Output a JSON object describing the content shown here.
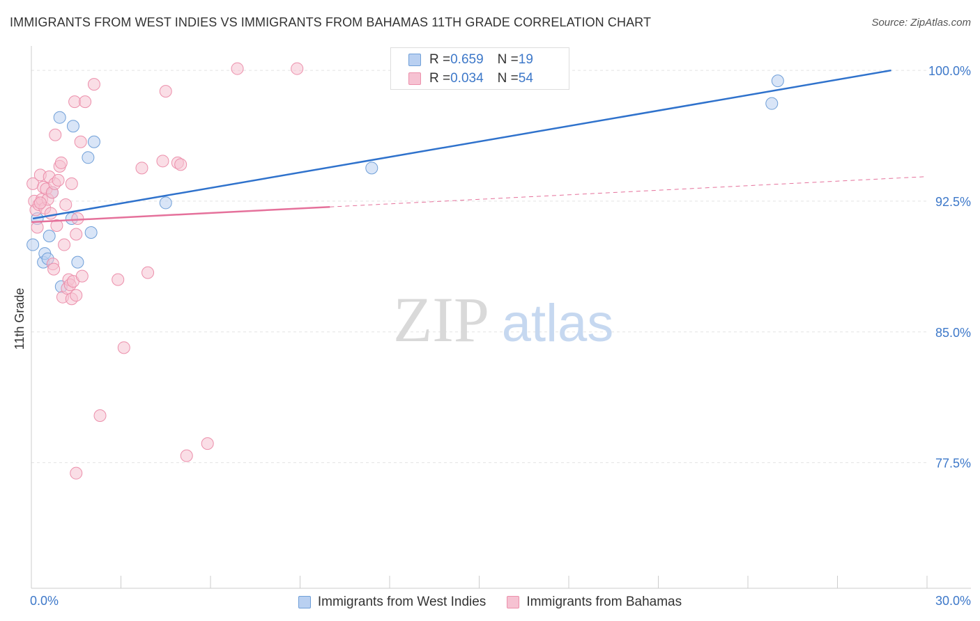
{
  "title": "IMMIGRANTS FROM WEST INDIES VS IMMIGRANTS FROM BAHAMAS 11TH GRADE CORRELATION CHART",
  "source": "Source: ZipAtlas.com",
  "watermark": {
    "zip": "ZIP",
    "atlas": "atlas"
  },
  "legend_top": [
    {
      "r_label": "R = ",
      "r_value": "0.659",
      "n_label": "N = ",
      "n_value": "19"
    },
    {
      "r_label": "R = ",
      "r_value": "0.034",
      "n_label": "N = ",
      "n_value": "54"
    }
  ],
  "chart_data": {
    "type": "scatter",
    "title": "IMMIGRANTS FROM WEST INDIES VS IMMIGRANTS FROM BAHAMAS 11TH GRADE CORRELATION CHART",
    "xlabel": "",
    "ylabel": "11th Grade",
    "xlim": [
      0,
      30
    ],
    "ylim": [
      70.3,
      101.4
    ],
    "x_tick_labels": [
      {
        "value": 0,
        "label": "0.0%"
      },
      {
        "value": 30,
        "label": "30.0%"
      }
    ],
    "y_tick_labels": [
      {
        "value": 100.0,
        "label": "100.0%"
      },
      {
        "value": 92.5,
        "label": "92.5%"
      },
      {
        "value": 85.0,
        "label": "85.0%"
      },
      {
        "value": 77.5,
        "label": "77.5%"
      }
    ],
    "series": [
      {
        "name": "Immigrants from West Indies",
        "color": "#6f9fd8",
        "fill": "#b9d0f1",
        "line_color": "#2f72cc",
        "trend": {
          "x0": 0.05,
          "y0": 91.5,
          "x1": 28.8,
          "y1": 100.0,
          "dashed_from": null
        },
        "points": [
          [
            0.05,
            90.0
          ],
          [
            0.2,
            91.5
          ],
          [
            0.4,
            89.0
          ],
          [
            0.45,
            89.5
          ],
          [
            0.55,
            89.2
          ],
          [
            0.6,
            90.5
          ],
          [
            0.7,
            93.0
          ],
          [
            0.95,
            97.3
          ],
          [
            1.0,
            87.6
          ],
          [
            1.35,
            91.5
          ],
          [
            1.4,
            96.8
          ],
          [
            1.55,
            89.0
          ],
          [
            2.1,
            95.9
          ],
          [
            1.9,
            95.0
          ],
          [
            2.0,
            90.7
          ],
          [
            4.5,
            92.4
          ],
          [
            11.4,
            94.4
          ],
          [
            24.8,
            98.1
          ],
          [
            25.0,
            99.4
          ]
        ]
      },
      {
        "name": "Immigrants from Bahamas",
        "color": "#ec8fab",
        "fill": "#f6c2d2",
        "line_color": "#e5719b",
        "trend": {
          "x0": 0.0,
          "y0": 91.3,
          "x1": 29.9,
          "y1": 93.9,
          "dashed_from": 10.0
        },
        "points": [
          [
            0.05,
            93.5
          ],
          [
            0.1,
            92.5
          ],
          [
            0.15,
            92.0
          ],
          [
            0.2,
            91.0
          ],
          [
            0.25,
            92.3
          ],
          [
            0.3,
            94.0
          ],
          [
            0.35,
            92.6
          ],
          [
            0.4,
            93.3
          ],
          [
            0.45,
            92.1
          ],
          [
            0.5,
            93.2
          ],
          [
            0.55,
            92.6
          ],
          [
            0.6,
            93.9
          ],
          [
            0.65,
            91.8
          ],
          [
            0.7,
            93.0
          ],
          [
            0.72,
            88.9
          ],
          [
            0.75,
            88.6
          ],
          [
            0.78,
            93.5
          ],
          [
            0.8,
            96.3
          ],
          [
            0.85,
            91.1
          ],
          [
            0.9,
            93.7
          ],
          [
            0.95,
            94.5
          ],
          [
            1.0,
            94.7
          ],
          [
            1.05,
            87.0
          ],
          [
            1.1,
            90.0
          ],
          [
            1.15,
            92.3
          ],
          [
            1.2,
            87.5
          ],
          [
            1.25,
            88.0
          ],
          [
            1.3,
            87.7
          ],
          [
            1.35,
            86.9
          ],
          [
            1.35,
            93.5
          ],
          [
            1.4,
            87.9
          ],
          [
            1.45,
            98.2
          ],
          [
            1.5,
            90.6
          ],
          [
            1.5,
            87.1
          ],
          [
            1.55,
            91.5
          ],
          [
            1.5,
            76.9
          ],
          [
            1.65,
            95.9
          ],
          [
            1.7,
            88.2
          ],
          [
            1.8,
            98.2
          ],
          [
            2.1,
            99.2
          ],
          [
            2.3,
            80.2
          ],
          [
            2.9,
            88.0
          ],
          [
            3.1,
            84.1
          ],
          [
            3.7,
            94.4
          ],
          [
            3.9,
            88.4
          ],
          [
            4.4,
            94.8
          ],
          [
            4.5,
            98.8
          ],
          [
            4.9,
            94.7
          ],
          [
            5.0,
            94.6
          ],
          [
            5.2,
            77.9
          ],
          [
            5.9,
            78.6
          ],
          [
            6.9,
            100.1
          ],
          [
            8.9,
            100.1
          ],
          [
            0.3,
            92.4
          ]
        ]
      }
    ]
  }
}
